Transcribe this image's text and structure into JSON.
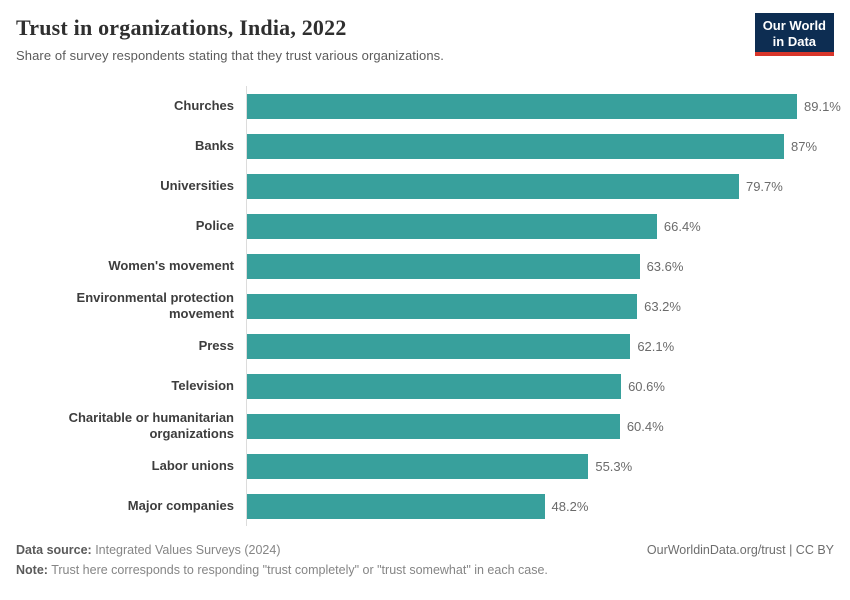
{
  "header": {
    "title": "Trust in organizations, India, 2022",
    "subtitle": "Share of survey respondents stating that they trust various organizations."
  },
  "logo": {
    "line1": "Our World",
    "line2": "in Data"
  },
  "colors": {
    "bar": "#38a09c",
    "logo_bg": "#0d2d52",
    "logo_stripe": "#d8352a",
    "axis_line": "#dcdcdc"
  },
  "chart_data": {
    "type": "bar",
    "orientation": "horizontal",
    "title": "Trust in organizations, India, 2022",
    "subtitle": "Share of survey respondents stating that they trust various organizations.",
    "categories": [
      "Churches",
      "Banks",
      "Universities",
      "Police",
      "Women's movement",
      "Environmental protection movement",
      "Press",
      "Television",
      "Charitable or humanitarian organizations",
      "Labor unions",
      "Major companies"
    ],
    "values": [
      89.1,
      87,
      79.7,
      66.4,
      63.6,
      63.2,
      62.1,
      60.6,
      60.4,
      55.3,
      48.2
    ],
    "value_labels": [
      "89.1%",
      "87%",
      "79.7%",
      "66.4%",
      "63.6%",
      "63.2%",
      "62.1%",
      "60.6%",
      "60.4%",
      "55.3%",
      "48.2%"
    ],
    "unit": "%",
    "xmax": 89.1,
    "grid": false,
    "legend": "none"
  },
  "footer": {
    "datasource_label": "Data source:",
    "datasource_value": " Integrated Values Surveys (2024)",
    "right_text": "OurWorldinData.org/trust | CC BY",
    "note_label": "Note:",
    "note_value": " Trust here corresponds to responding \"trust completely\" or \"trust somewhat\" in each case."
  }
}
